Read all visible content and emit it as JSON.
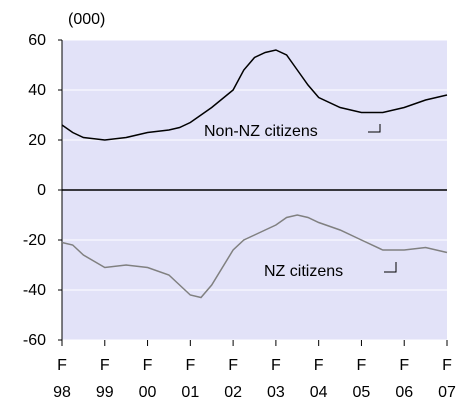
{
  "chart_data": {
    "type": "line",
    "unit_label": "(000)",
    "x": [
      1998,
      1998.25,
      1998.5,
      1999,
      1999.5,
      2000,
      2000.5,
      2000.75,
      2001,
      2001.25,
      2001.5,
      2002,
      2002.25,
      2002.5,
      2002.75,
      2003,
      2003.25,
      2003.5,
      2003.75,
      2004,
      2004.5,
      2005,
      2005.5,
      2006,
      2006.5,
      2007
    ],
    "series": [
      {
        "name": "Non-NZ citizens",
        "color": "#000000",
        "values": [
          26,
          23,
          21,
          20,
          21,
          23,
          24,
          25,
          27,
          30,
          33,
          40,
          48,
          53,
          55,
          56,
          54,
          48,
          42,
          37,
          33,
          31,
          31,
          33,
          36,
          38
        ]
      },
      {
        "name": "NZ citizens",
        "color": "#808080",
        "values": [
          -21,
          -22,
          -26,
          -31,
          -30,
          -31,
          -34,
          -38,
          -42,
          -43,
          -38,
          -24,
          -20,
          -18,
          -16,
          -14,
          -11,
          -10,
          -11,
          -13,
          -16,
          -20,
          -24,
          -24,
          -23,
          -25
        ]
      }
    ],
    "annotations": [
      "Non-NZ citizens",
      "NZ citizens"
    ],
    "xlim": [
      1998,
      2007
    ],
    "xticks": [
      {
        "value": 1998,
        "label": "F\n98"
      },
      {
        "value": 1999,
        "label": "F\n99"
      },
      {
        "value": 2000,
        "label": "F\n00"
      },
      {
        "value": 2001,
        "label": "F\n01"
      },
      {
        "value": 2002,
        "label": "F\n02"
      },
      {
        "value": 2003,
        "label": "F\n03"
      },
      {
        "value": 2004,
        "label": "F\n04"
      },
      {
        "value": 2005,
        "label": "F\n05"
      },
      {
        "value": 2006,
        "label": "F\n06"
      },
      {
        "value": 2007,
        "label": "F\n07"
      }
    ],
    "ylim": [
      -60,
      60
    ],
    "yticks": [
      -60,
      -40,
      -20,
      0,
      20,
      40,
      60
    ],
    "grid": true,
    "background": "#e2e2f8"
  }
}
